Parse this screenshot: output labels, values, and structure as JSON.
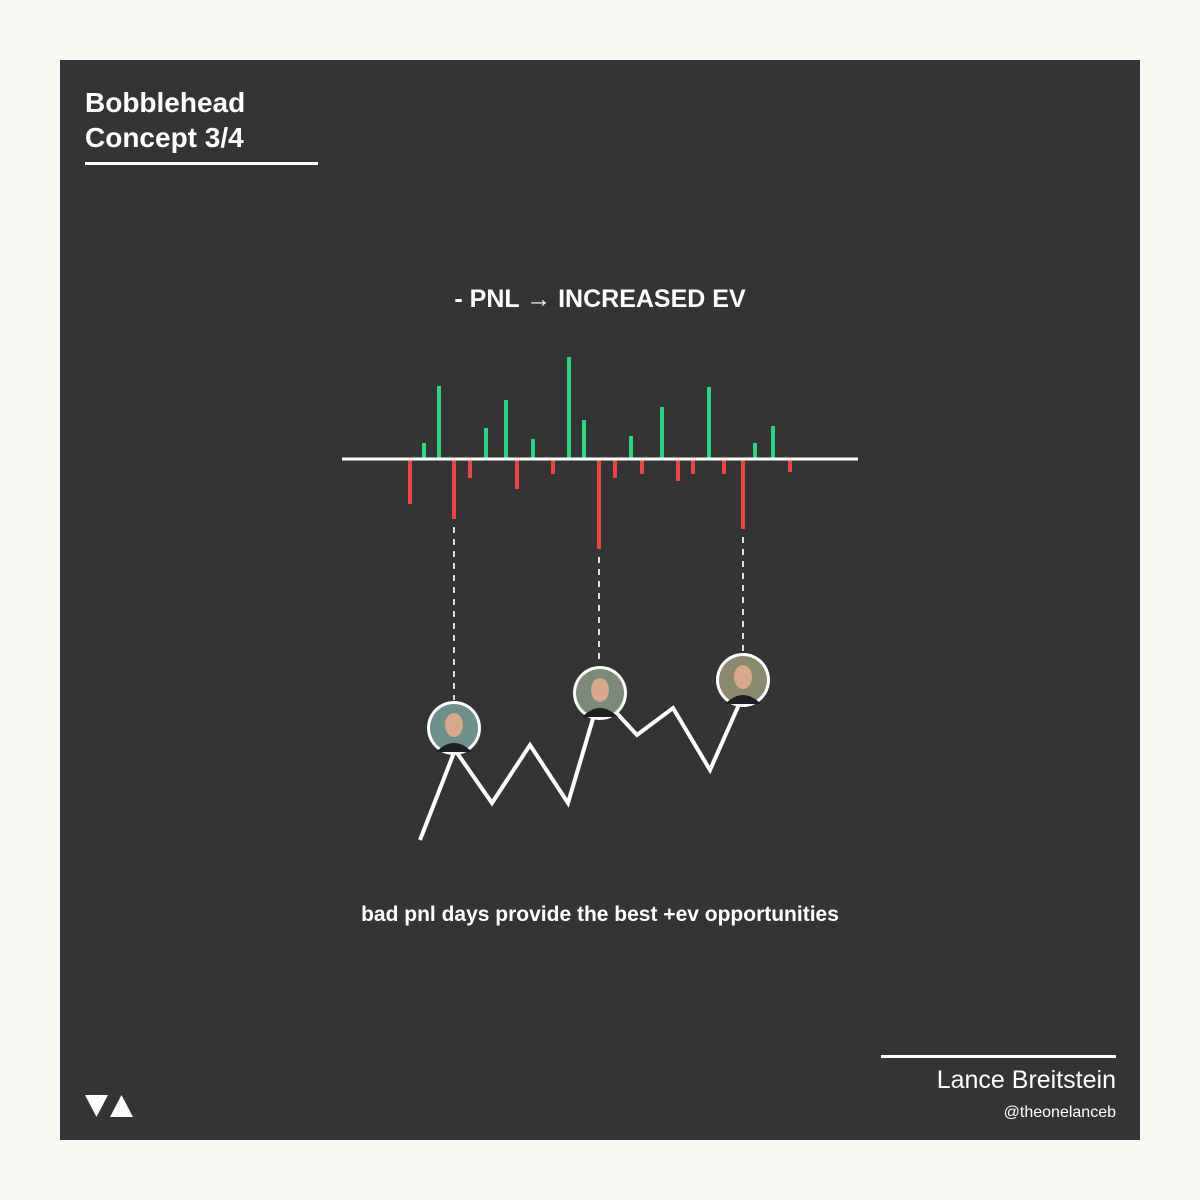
{
  "header": {
    "title_line1": "Bobblehead",
    "title_line2": "Concept 3/4"
  },
  "headline": "- PNL → INCREASED EV",
  "caption": "bad pnl days provide the best +ev opportunities",
  "author": {
    "name": "Lance Breitstein",
    "handle": "@theonelanceb"
  }
}
